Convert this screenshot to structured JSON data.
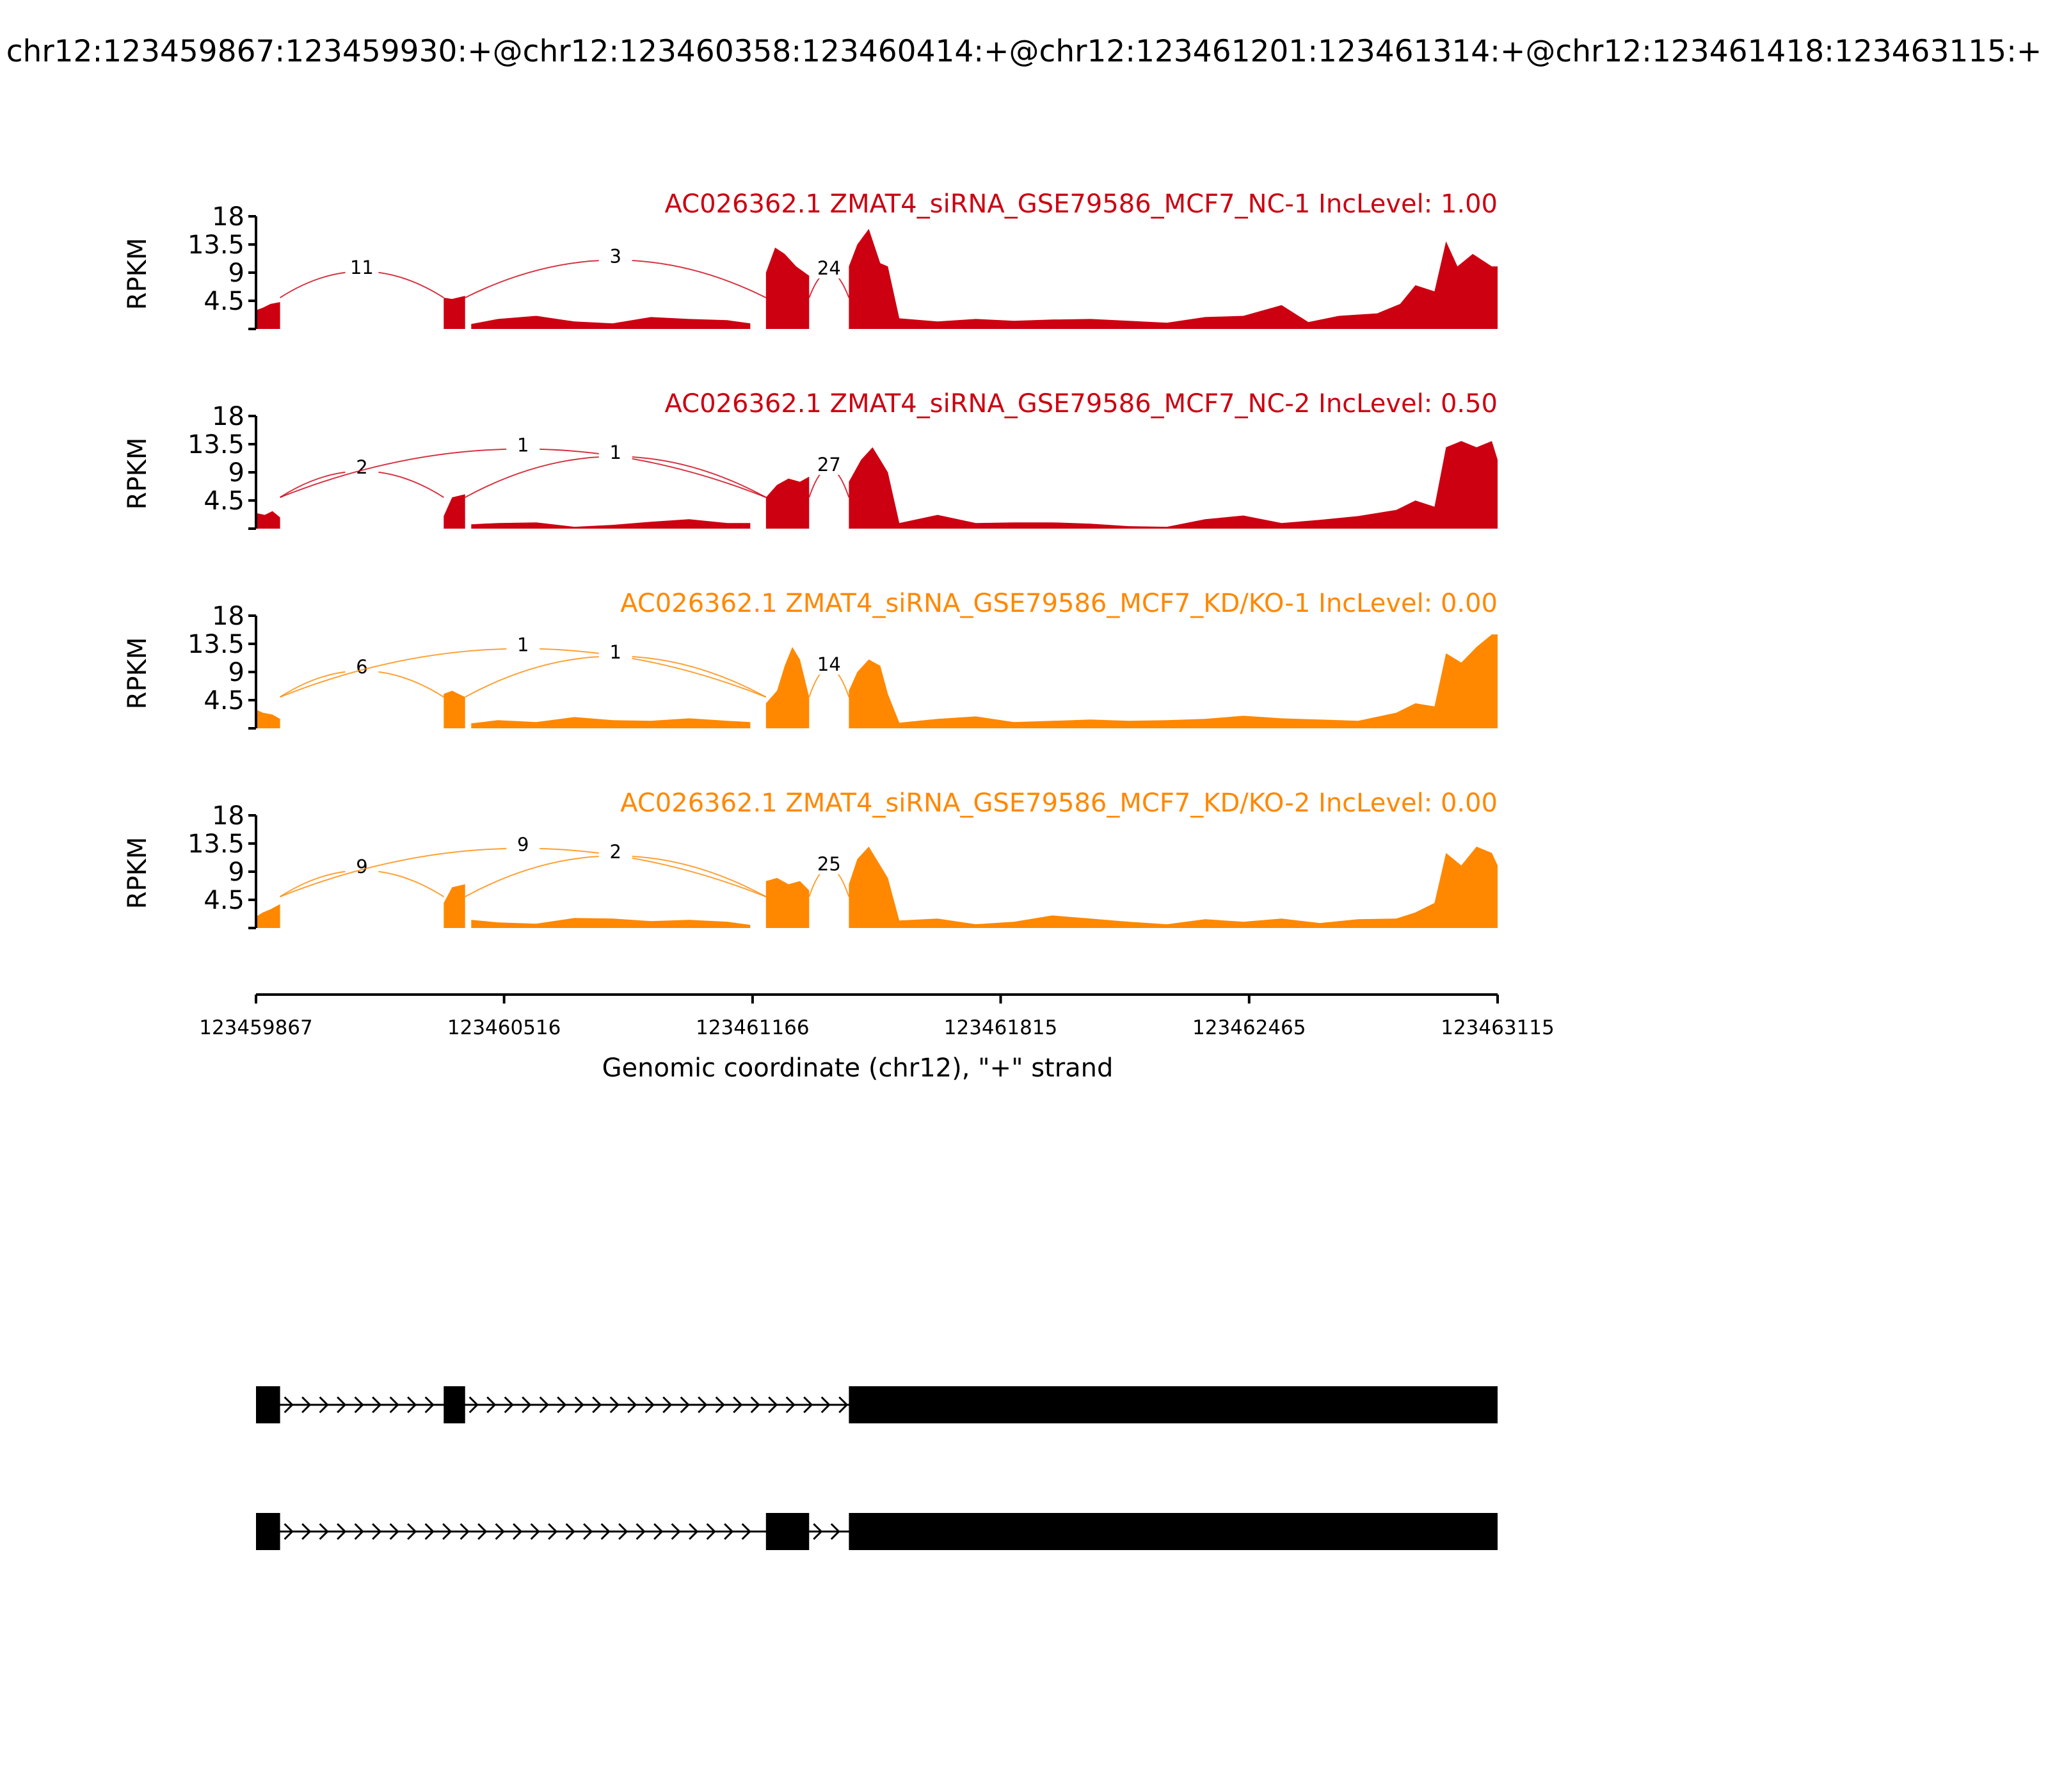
{
  "title": "chr12:123459867:123459930:+@chr12:123460358:123460414:+@chr12:123461201:123461314:+@chr12:123461418:123463115:+",
  "chart_data": {
    "type": "area",
    "x_axis": {
      "label": "Genomic coordinate (chr12), \"+\" strand",
      "range": [
        123459867,
        123463115
      ],
      "ticks": [
        123459867,
        123460516,
        123461166,
        123461815,
        123462465,
        123463115
      ],
      "tick_labels": [
        "123459867",
        "123460516",
        "123461166",
        "123461815",
        "123462465",
        "123463115"
      ]
    },
    "y_axis": {
      "label": "RPKM",
      "range": [
        0,
        18
      ],
      "ticks": [
        4.5,
        9,
        13.5,
        18
      ],
      "tick_labels": [
        "4.5",
        "9",
        "13.5",
        "18"
      ]
    },
    "exons": [
      {
        "start": 123459867,
        "end": 123459930
      },
      {
        "start": 123460358,
        "end": 123460414
      },
      {
        "start": 123461201,
        "end": 123461314
      },
      {
        "start": 123461418,
        "end": 123463115
      }
    ],
    "series": [
      {
        "name": "AC026362.1 ZMAT4_siRNA_GSE79586_MCF7_NC-1 IncLevel: 1.00",
        "color": "#CC0011",
        "coverage": [
          [
            123459867,
            3
          ],
          [
            123459885,
            3.4
          ],
          [
            123459905,
            4
          ],
          [
            123459930,
            4.3
          ],
          [
            123460358,
            5
          ],
          [
            123460380,
            4.8
          ],
          [
            123460414,
            5.3
          ],
          [
            123460430,
            0.8
          ],
          [
            123460500,
            1.6
          ],
          [
            123460600,
            2.1
          ],
          [
            123460700,
            1.2
          ],
          [
            123460800,
            0.9
          ],
          [
            123460900,
            1.9
          ],
          [
            123461000,
            1.6
          ],
          [
            123461100,
            1.4
          ],
          [
            123461160,
            0.9
          ],
          [
            123461201,
            9
          ],
          [
            123461225,
            13
          ],
          [
            123461250,
            12
          ],
          [
            123461280,
            10
          ],
          [
            123461314,
            8.5
          ],
          [
            123461418,
            10
          ],
          [
            123461440,
            13.5
          ],
          [
            123461470,
            16
          ],
          [
            123461500,
            10.5
          ],
          [
            123461520,
            10
          ],
          [
            123461550,
            1.7
          ],
          [
            123461650,
            1.2
          ],
          [
            123461750,
            1.6
          ],
          [
            123461850,
            1.3
          ],
          [
            123461950,
            1.5
          ],
          [
            123462050,
            1.6
          ],
          [
            123462150,
            1.3
          ],
          [
            123462250,
            1.0
          ],
          [
            123462350,
            1.9
          ],
          [
            123462450,
            2.1
          ],
          [
            123462550,
            3.8
          ],
          [
            123462620,
            1.1
          ],
          [
            123462700,
            2.1
          ],
          [
            123462800,
            2.5
          ],
          [
            123462860,
            4
          ],
          [
            123462900,
            7
          ],
          [
            123462950,
            6
          ],
          [
            123462980,
            14
          ],
          [
            123463010,
            10
          ],
          [
            123463050,
            12
          ],
          [
            123463100,
            10
          ],
          [
            123463115,
            10
          ]
        ],
        "junctions": [
          {
            "from": 123459930,
            "to": 123460358,
            "reads": 11
          },
          {
            "from": 123460414,
            "to": 123461201,
            "reads": 3
          },
          {
            "from": 123461314,
            "to": 123461418,
            "reads": 24
          }
        ]
      },
      {
        "name": "AC026362.1 ZMAT4_siRNA_GSE79586_MCF7_NC-2 IncLevel: 0.50",
        "color": "#CC0011",
        "coverage": [
          [
            123459867,
            2.5
          ],
          [
            123459890,
            2.2
          ],
          [
            123459910,
            2.8
          ],
          [
            123459930,
            1.8
          ],
          [
            123460358,
            2
          ],
          [
            123460380,
            5
          ],
          [
            123460414,
            5.5
          ],
          [
            123460430,
            0.7
          ],
          [
            123460500,
            0.9
          ],
          [
            123460600,
            1.0
          ],
          [
            123460700,
            0.3
          ],
          [
            123460800,
            0.6
          ],
          [
            123460900,
            1.1
          ],
          [
            123461000,
            1.5
          ],
          [
            123461100,
            0.9
          ],
          [
            123461160,
            0.9
          ],
          [
            123461201,
            5
          ],
          [
            123461230,
            7
          ],
          [
            123461260,
            8
          ],
          [
            123461290,
            7.5
          ],
          [
            123461314,
            8.3
          ],
          [
            123461418,
            7.5
          ],
          [
            123461450,
            11
          ],
          [
            123461480,
            13
          ],
          [
            123461500,
            11
          ],
          [
            123461520,
            9
          ],
          [
            123461550,
            0.9
          ],
          [
            123461650,
            2.2
          ],
          [
            123461750,
            0.9
          ],
          [
            123461850,
            1.0
          ],
          [
            123461950,
            1.0
          ],
          [
            123462050,
            0.8
          ],
          [
            123462150,
            0.4
          ],
          [
            123462250,
            0.3
          ],
          [
            123462350,
            1.5
          ],
          [
            123462450,
            2.1
          ],
          [
            123462550,
            0.9
          ],
          [
            123462650,
            1.4
          ],
          [
            123462750,
            2.0
          ],
          [
            123462850,
            3
          ],
          [
            123462900,
            4.5
          ],
          [
            123462950,
            3.5
          ],
          [
            123462980,
            13
          ],
          [
            123463020,
            14
          ],
          [
            123463060,
            13
          ],
          [
            123463100,
            14
          ],
          [
            123463115,
            11
          ]
        ],
        "junctions": [
          {
            "from": 123459930,
            "to": 123460358,
            "reads": 2
          },
          {
            "from": 123459930,
            "to": 123461201,
            "reads": 1
          },
          {
            "from": 123460414,
            "to": 123461201,
            "reads": 1
          },
          {
            "from": 123461314,
            "to": 123461418,
            "reads": 27
          }
        ]
      },
      {
        "name": "AC026362.1 ZMAT4_siRNA_GSE79586_MCF7_KD/KO-1 IncLevel: 0.00",
        "color": "#FF8800",
        "coverage": [
          [
            123459867,
            3
          ],
          [
            123459885,
            2.5
          ],
          [
            123459910,
            2.2
          ],
          [
            123459930,
            1.5
          ],
          [
            123460358,
            5.5
          ],
          [
            123460380,
            6
          ],
          [
            123460414,
            5
          ],
          [
            123460430,
            0.8
          ],
          [
            123460500,
            1.3
          ],
          [
            123460600,
            1.0
          ],
          [
            123460700,
            1.8
          ],
          [
            123460800,
            1.3
          ],
          [
            123460900,
            1.2
          ],
          [
            123461000,
            1.6
          ],
          [
            123461100,
            1.2
          ],
          [
            123461160,
            1.0
          ],
          [
            123461201,
            4
          ],
          [
            123461230,
            6
          ],
          [
            123461250,
            10
          ],
          [
            123461270,
            13
          ],
          [
            123461290,
            11
          ],
          [
            123461314,
            5
          ],
          [
            123461418,
            6
          ],
          [
            123461440,
            9
          ],
          [
            123461470,
            11
          ],
          [
            123461500,
            10
          ],
          [
            123461520,
            5.5
          ],
          [
            123461550,
            0.9
          ],
          [
            123461650,
            1.5
          ],
          [
            123461750,
            1.9
          ],
          [
            123461850,
            1.0
          ],
          [
            123461950,
            1.2
          ],
          [
            123462050,
            1.4
          ],
          [
            123462150,
            1.2
          ],
          [
            123462250,
            1.3
          ],
          [
            123462350,
            1.5
          ],
          [
            123462450,
            2.0
          ],
          [
            123462550,
            1.6
          ],
          [
            123462650,
            1.4
          ],
          [
            123462750,
            1.2
          ],
          [
            123462850,
            2.5
          ],
          [
            123462900,
            4
          ],
          [
            123462950,
            3.5
          ],
          [
            123462980,
            12
          ],
          [
            123463020,
            10.5
          ],
          [
            123463060,
            13
          ],
          [
            123463100,
            15
          ],
          [
            123463115,
            15
          ]
        ],
        "junctions": [
          {
            "from": 123459930,
            "to": 123460358,
            "reads": 6
          },
          {
            "from": 123459930,
            "to": 123461201,
            "reads": 1
          },
          {
            "from": 123460414,
            "to": 123461201,
            "reads": 1
          },
          {
            "from": 123461314,
            "to": 123461418,
            "reads": 14
          }
        ]
      },
      {
        "name": "AC026362.1 ZMAT4_siRNA_GSE79586_MCF7_KD/KO-2 IncLevel: 0.00",
        "color": "#FF8800",
        "coverage": [
          [
            123459867,
            1.8
          ],
          [
            123459885,
            2.5
          ],
          [
            123459905,
            3.0
          ],
          [
            123459930,
            3.8
          ],
          [
            123460358,
            4
          ],
          [
            123460380,
            6.5
          ],
          [
            123460414,
            7
          ],
          [
            123460430,
            1.3
          ],
          [
            123460500,
            0.9
          ],
          [
            123460600,
            0.7
          ],
          [
            123460700,
            1.6
          ],
          [
            123460800,
            1.5
          ],
          [
            123460900,
            1.1
          ],
          [
            123461000,
            1.3
          ],
          [
            123461100,
            1.0
          ],
          [
            123461160,
            0.5
          ],
          [
            123461201,
            7.5
          ],
          [
            123461230,
            8
          ],
          [
            123461260,
            7
          ],
          [
            123461290,
            7.5
          ],
          [
            123461314,
            6
          ],
          [
            123461418,
            7
          ],
          [
            123461440,
            11
          ],
          [
            123461470,
            13
          ],
          [
            123461500,
            10
          ],
          [
            123461520,
            8
          ],
          [
            123461550,
            1.2
          ],
          [
            123461650,
            1.5
          ],
          [
            123461750,
            0.6
          ],
          [
            123461850,
            1.0
          ],
          [
            123461950,
            2.0
          ],
          [
            123462050,
            1.5
          ],
          [
            123462150,
            1.0
          ],
          [
            123462250,
            0.6
          ],
          [
            123462350,
            1.4
          ],
          [
            123462450,
            1.0
          ],
          [
            123462550,
            1.5
          ],
          [
            123462650,
            0.8
          ],
          [
            123462750,
            1.4
          ],
          [
            123462850,
            1.5
          ],
          [
            123462900,
            2.5
          ],
          [
            123462950,
            4
          ],
          [
            123462980,
            12
          ],
          [
            123463020,
            10
          ],
          [
            123463060,
            13
          ],
          [
            123463100,
            12
          ],
          [
            123463115,
            10
          ]
        ],
        "junctions": [
          {
            "from": 123459930,
            "to": 123460358,
            "reads": 9
          },
          {
            "from": 123459930,
            "to": 123461201,
            "reads": 9
          },
          {
            "from": 123460414,
            "to": 123461201,
            "reads": 2
          },
          {
            "from": 123461314,
            "to": 123461418,
            "reads": 25
          }
        ]
      }
    ],
    "isoforms": [
      {
        "exons": [
          [
            123459867,
            123459930
          ],
          [
            123460358,
            123460414
          ],
          [
            123461418,
            123463115
          ]
        ]
      },
      {
        "exons": [
          [
            123459867,
            123459930
          ],
          [
            123461201,
            123461314
          ],
          [
            123461418,
            123463115
          ]
        ]
      }
    ]
  }
}
